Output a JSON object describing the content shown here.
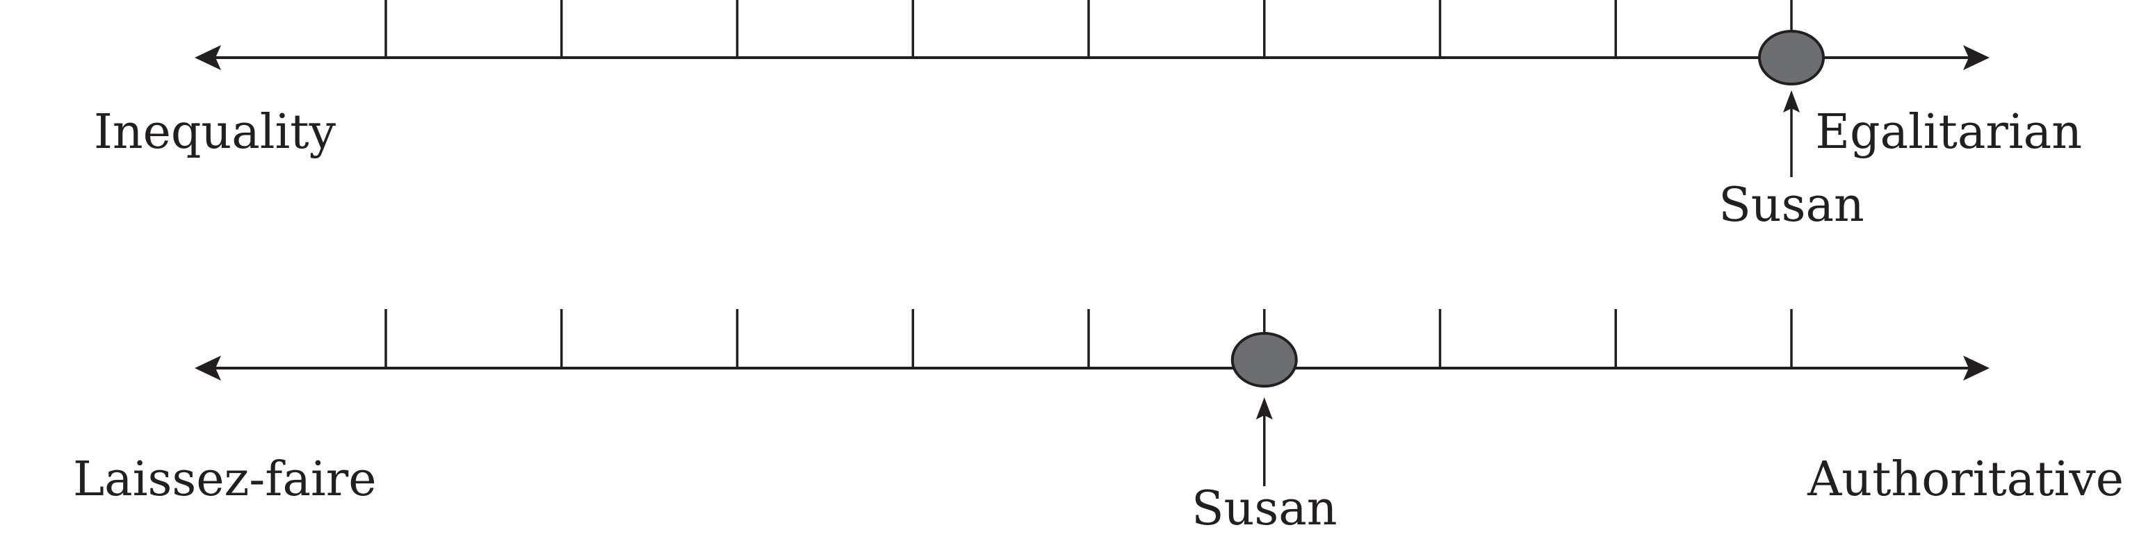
{
  "scales": [
    {
      "left_label": "Inequality",
      "right_label": "Egalitarian",
      "marker_label": "Susan",
      "tick_count": 9,
      "marker_tick": 9
    },
    {
      "left_label": "Laissez-faire",
      "right_label": "Authoritative",
      "marker_label": "Susan",
      "tick_count": 9,
      "marker_tick": 6
    }
  ],
  "colors": {
    "line": "#231f20",
    "marker_fill": "#6d6e71"
  }
}
